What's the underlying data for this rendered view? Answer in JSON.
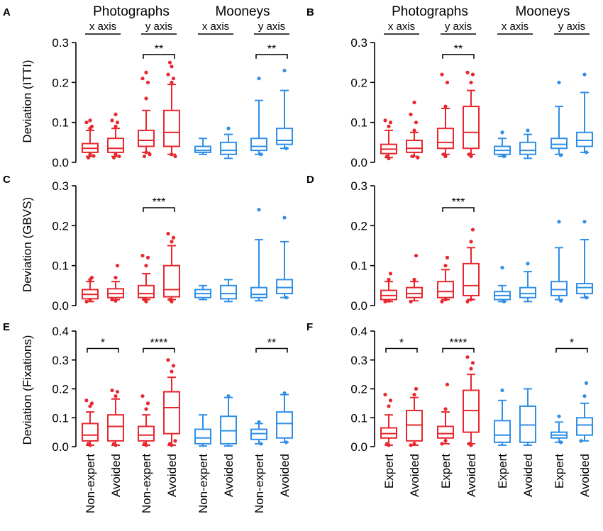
{
  "colors": {
    "photographs": "#e8272e",
    "mooneys": "#2f8fe8",
    "axis": "#000000"
  },
  "group_headers": {
    "photographs": "Photographs",
    "mooneys": "Mooneys"
  },
  "axis_headers": [
    "x axis",
    "y axis",
    "x axis",
    "y axis"
  ],
  "ylabels": {
    "ITTI": "Deviation (ITTI)",
    "GBVS": "Deviation (GBVS)",
    "Fixations": "Deviation (Fixations)"
  },
  "category_labels": {
    "left": [
      "Non-expert",
      "Avoided",
      "Non-expert",
      "Avoided",
      "Non-expert",
      "Avoided",
      "Non-expert",
      "Avoided"
    ],
    "right": [
      "Expert",
      "Avoided",
      "Expert",
      "Avoided",
      "Expert",
      "Avoided",
      "Expert",
      "Avoided"
    ]
  },
  "chart_data": [
    {
      "panel": "A",
      "type": "box",
      "title": "",
      "xlabel": "",
      "ylabel": "Deviation (ITTI)",
      "ylim": [
        0,
        0.3
      ],
      "yticks": [
        "0.0",
        "0.1",
        "0.2",
        "0.3"
      ],
      "boxes": [
        {
          "q1": 0.025,
          "med": 0.035,
          "q3": 0.047,
          "lo": 0.015,
          "hi": 0.08,
          "out": [
            0.085,
            0.09,
            0.1,
            0.105,
            0.012,
            0.016,
            0.02
          ]
        },
        {
          "q1": 0.025,
          "med": 0.035,
          "q3": 0.06,
          "lo": 0.015,
          "hi": 0.085,
          "out": [
            0.09,
            0.1,
            0.105,
            0.12,
            0.012,
            0.015,
            0.02
          ]
        },
        {
          "q1": 0.04,
          "med": 0.055,
          "q3": 0.08,
          "lo": 0.025,
          "hi": 0.13,
          "out": [
            0.16,
            0.2,
            0.21,
            0.225,
            0.015,
            0.02,
            0.025
          ]
        },
        {
          "q1": 0.04,
          "med": 0.075,
          "q3": 0.13,
          "lo": 0.02,
          "hi": 0.195,
          "out": [
            0.2,
            0.21,
            0.22,
            0.24,
            0.25,
            0.015,
            0.02
          ]
        },
        {
          "q1": 0.025,
          "med": 0.03,
          "q3": 0.04,
          "lo": 0.02,
          "hi": 0.06,
          "out": []
        },
        {
          "q1": 0.02,
          "med": 0.03,
          "q3": 0.05,
          "lo": 0.01,
          "hi": 0.07,
          "out": [
            0.085
          ]
        },
        {
          "q1": 0.03,
          "med": 0.04,
          "q3": 0.06,
          "lo": 0.02,
          "hi": 0.155,
          "out": [
            0.21,
            0.02
          ]
        },
        {
          "q1": 0.045,
          "med": 0.055,
          "q3": 0.085,
          "lo": 0.035,
          "hi": 0.18,
          "out": [
            0.23,
            0.035
          ]
        }
      ],
      "sig": [
        {
          "from": 2,
          "to": 3,
          "label": "**",
          "y": 0.27
        },
        {
          "from": 6,
          "to": 7,
          "label": "**",
          "y": 0.27
        }
      ]
    },
    {
      "panel": "B",
      "type": "box",
      "title": "",
      "xlabel": "",
      "ylabel": "",
      "ylim": [
        0,
        0.3
      ],
      "yticks": [
        "0.0",
        "0.1",
        "0.2",
        "0.3"
      ],
      "boxes": [
        {
          "q1": 0.022,
          "med": 0.033,
          "q3": 0.045,
          "lo": 0.012,
          "hi": 0.08,
          "out": [
            0.09,
            0.1,
            0.105,
            0.01,
            0.015
          ]
        },
        {
          "q1": 0.025,
          "med": 0.035,
          "q3": 0.055,
          "lo": 0.015,
          "hi": 0.075,
          "out": [
            0.08,
            0.1,
            0.12,
            0.15,
            0.015,
            0.012
          ]
        },
        {
          "q1": 0.035,
          "med": 0.05,
          "q3": 0.085,
          "lo": 0.02,
          "hi": 0.135,
          "out": [
            0.14,
            0.2,
            0.22,
            0.015,
            0.02
          ]
        },
        {
          "q1": 0.035,
          "med": 0.075,
          "q3": 0.14,
          "lo": 0.02,
          "hi": 0.18,
          "out": [
            0.2,
            0.22,
            0.225,
            0.015,
            0.02
          ]
        },
        {
          "q1": 0.02,
          "med": 0.03,
          "q3": 0.04,
          "lo": 0.015,
          "hi": 0.06,
          "out": [
            0.075,
            0.015
          ]
        },
        {
          "q1": 0.02,
          "med": 0.03,
          "q3": 0.05,
          "lo": 0.01,
          "hi": 0.07,
          "out": [
            0.08
          ]
        },
        {
          "q1": 0.035,
          "med": 0.045,
          "q3": 0.06,
          "lo": 0.02,
          "hi": 0.14,
          "out": [
            0.2,
            0.018
          ]
        },
        {
          "q1": 0.04,
          "med": 0.055,
          "q3": 0.075,
          "lo": 0.025,
          "hi": 0.175,
          "out": [
            0.22,
            0.025
          ]
        }
      ],
      "sig": [
        {
          "from": 2,
          "to": 3,
          "label": "**",
          "y": 0.27
        }
      ]
    },
    {
      "panel": "C",
      "type": "box",
      "title": "",
      "xlabel": "",
      "ylabel": "Deviation (GBVS)",
      "ylim": [
        0,
        0.3
      ],
      "yticks": [
        "0.0",
        "0.1",
        "0.2",
        "0.3"
      ],
      "boxes": [
        {
          "q1": 0.017,
          "med": 0.028,
          "q3": 0.04,
          "lo": 0.01,
          "hi": 0.06,
          "out": [
            0.065,
            0.07,
            0.01,
            0.015
          ]
        },
        {
          "q1": 0.02,
          "med": 0.03,
          "q3": 0.042,
          "lo": 0.015,
          "hi": 0.06,
          "out": [
            0.07,
            0.1,
            0.015,
            0.012
          ]
        },
        {
          "q1": 0.02,
          "med": 0.03,
          "q3": 0.05,
          "lo": 0.015,
          "hi": 0.08,
          "out": [
            0.1,
            0.12,
            0.125,
            0.01,
            0.015
          ]
        },
        {
          "q1": 0.022,
          "med": 0.04,
          "q3": 0.1,
          "lo": 0.015,
          "hi": 0.15,
          "out": [
            0.16,
            0.17,
            0.18,
            0.01,
            0.015
          ]
        },
        {
          "q1": 0.02,
          "med": 0.03,
          "q3": 0.04,
          "lo": 0.015,
          "hi": 0.05,
          "out": []
        },
        {
          "q1": 0.017,
          "med": 0.03,
          "q3": 0.05,
          "lo": 0.01,
          "hi": 0.065,
          "out": []
        },
        {
          "q1": 0.02,
          "med": 0.028,
          "q3": 0.045,
          "lo": 0.012,
          "hi": 0.165,
          "out": [
            0.24
          ]
        },
        {
          "q1": 0.03,
          "med": 0.045,
          "q3": 0.065,
          "lo": 0.02,
          "hi": 0.16,
          "out": [
            0.22,
            0.02
          ]
        }
      ],
      "sig": [
        {
          "from": 2,
          "to": 3,
          "label": "***",
          "y": 0.245
        }
      ]
    },
    {
      "panel": "D",
      "type": "box",
      "title": "",
      "xlabel": "",
      "ylabel": "",
      "ylim": [
        0,
        0.3
      ],
      "yticks": [
        "0.0",
        "0.1",
        "0.2",
        "0.3"
      ],
      "boxes": [
        {
          "q1": 0.015,
          "med": 0.025,
          "q3": 0.038,
          "lo": 0.01,
          "hi": 0.06,
          "out": [
            0.065,
            0.08,
            0.01,
            0.012
          ]
        },
        {
          "q1": 0.02,
          "med": 0.03,
          "q3": 0.045,
          "lo": 0.012,
          "hi": 0.06,
          "out": [
            0.065,
            0.125,
            0.01
          ]
        },
        {
          "q1": 0.02,
          "med": 0.035,
          "q3": 0.06,
          "lo": 0.015,
          "hi": 0.09,
          "out": [
            0.1,
            0.12,
            0.01,
            0.015
          ]
        },
        {
          "q1": 0.025,
          "med": 0.05,
          "q3": 0.105,
          "lo": 0.015,
          "hi": 0.145,
          "out": [
            0.16,
            0.19,
            0.01,
            0.015
          ]
        },
        {
          "q1": 0.015,
          "med": 0.025,
          "q3": 0.035,
          "lo": 0.01,
          "hi": 0.05,
          "out": [
            0.095,
            0.01
          ]
        },
        {
          "q1": 0.02,
          "med": 0.03,
          "q3": 0.045,
          "lo": 0.01,
          "hi": 0.085,
          "out": [
            0.105
          ]
        },
        {
          "q1": 0.025,
          "med": 0.04,
          "q3": 0.06,
          "lo": 0.015,
          "hi": 0.145,
          "out": [
            0.21,
            0.012
          ]
        },
        {
          "q1": 0.03,
          "med": 0.045,
          "q3": 0.055,
          "lo": 0.02,
          "hi": 0.165,
          "out": [
            0.21,
            0.02
          ]
        }
      ],
      "sig": [
        {
          "from": 2,
          "to": 3,
          "label": "***",
          "y": 0.245
        }
      ]
    },
    {
      "panel": "E",
      "type": "box",
      "title": "",
      "xlabel": "",
      "ylabel": "Deviation (Fixations)",
      "ylim": [
        0,
        0.4
      ],
      "yticks": [
        "0.0",
        "0.1",
        "0.2",
        "0.3",
        "0.4"
      ],
      "boxes": [
        {
          "q1": 0.02,
          "med": 0.04,
          "q3": 0.08,
          "lo": 0.005,
          "hi": 0.12,
          "out": [
            0.14,
            0.15,
            0.16,
            0.005,
            0.01
          ]
        },
        {
          "q1": 0.02,
          "med": 0.07,
          "q3": 0.11,
          "lo": 0.005,
          "hi": 0.165,
          "out": [
            0.175,
            0.19,
            0.195,
            0.005,
            0.01
          ]
        },
        {
          "q1": 0.02,
          "med": 0.04,
          "q3": 0.07,
          "lo": 0.005,
          "hi": 0.11,
          "out": [
            0.13,
            0.15,
            0.175,
            0.005,
            0.01
          ]
        },
        {
          "q1": 0.045,
          "med": 0.135,
          "q3": 0.19,
          "lo": 0.005,
          "hi": 0.24,
          "out": [
            0.26,
            0.28,
            0.3,
            0.005,
            0.01,
            0.02
          ]
        },
        {
          "q1": 0.01,
          "med": 0.03,
          "q3": 0.06,
          "lo": 0.002,
          "hi": 0.11,
          "out": []
        },
        {
          "q1": 0.01,
          "med": 0.055,
          "q3": 0.105,
          "lo": 0.002,
          "hi": 0.17,
          "out": [
            0.175
          ]
        },
        {
          "q1": 0.025,
          "med": 0.045,
          "q3": 0.06,
          "lo": 0.01,
          "hi": 0.08,
          "out": [
            0.085,
            0.01
          ]
        },
        {
          "q1": 0.03,
          "med": 0.08,
          "q3": 0.12,
          "lo": 0.015,
          "hi": 0.18,
          "out": [
            0.185,
            0.015
          ]
        }
      ],
      "sig": [
        {
          "from": 0,
          "to": 1,
          "label": "*",
          "y": 0.34
        },
        {
          "from": 2,
          "to": 3,
          "label": "****",
          "y": 0.34
        },
        {
          "from": 6,
          "to": 7,
          "label": "**",
          "y": 0.34
        }
      ]
    },
    {
      "panel": "F",
      "type": "box",
      "title": "",
      "xlabel": "",
      "ylabel": "",
      "ylim": [
        0,
        0.4
      ],
      "yticks": [
        "0.0",
        "0.1",
        "0.2",
        "0.3",
        "0.4"
      ],
      "boxes": [
        {
          "q1": 0.03,
          "med": 0.045,
          "q3": 0.065,
          "lo": 0.005,
          "hi": 0.11,
          "out": [
            0.14,
            0.16,
            0.18,
            0.005,
            0.01
          ]
        },
        {
          "q1": 0.02,
          "med": 0.075,
          "q3": 0.125,
          "lo": 0.005,
          "hi": 0.17,
          "out": [
            0.18,
            0.2,
            0.005,
            0.01
          ]
        },
        {
          "q1": 0.03,
          "med": 0.045,
          "q3": 0.07,
          "lo": 0.01,
          "hi": 0.12,
          "out": [
            0.13,
            0.215,
            0.01,
            0.02
          ]
        },
        {
          "q1": 0.05,
          "med": 0.125,
          "q3": 0.195,
          "lo": 0.01,
          "hi": 0.25,
          "out": [
            0.27,
            0.29,
            0.31,
            0.005,
            0.01
          ]
        },
        {
          "q1": 0.015,
          "med": 0.04,
          "q3": 0.09,
          "lo": 0.005,
          "hi": 0.16,
          "out": [
            0.195
          ]
        },
        {
          "q1": 0.015,
          "med": 0.075,
          "q3": 0.14,
          "lo": 0.005,
          "hi": 0.2,
          "out": []
        },
        {
          "q1": 0.03,
          "med": 0.04,
          "q3": 0.05,
          "lo": 0.015,
          "hi": 0.085,
          "out": [
            0.105,
            0.015
          ]
        },
        {
          "q1": 0.04,
          "med": 0.075,
          "q3": 0.1,
          "lo": 0.02,
          "hi": 0.15,
          "out": [
            0.175,
            0.22,
            0.02
          ]
        }
      ],
      "sig": [
        {
          "from": 0,
          "to": 1,
          "label": "*",
          "y": 0.34
        },
        {
          "from": 2,
          "to": 3,
          "label": "****",
          "y": 0.34
        },
        {
          "from": 6,
          "to": 7,
          "label": "*",
          "y": 0.34
        }
      ]
    }
  ]
}
